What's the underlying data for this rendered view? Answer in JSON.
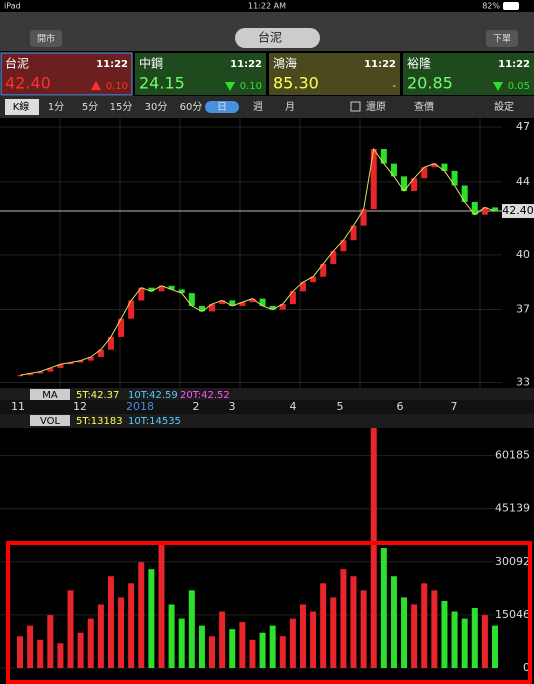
{
  "status_bar": {
    "device": "iPad",
    "time": "11:22 AM",
    "battery": "82%"
  },
  "toolbar": {
    "left_button": "開市",
    "title": "台泥",
    "right_button": "下單"
  },
  "quotes": [
    {
      "name": "台泥",
      "time": "11:22",
      "price": "42.40",
      "change": "0.10"
    },
    {
      "name": "中鋼",
      "time": "11:22",
      "price": "24.15",
      "change": "0.10"
    },
    {
      "name": "鴻海",
      "time": "11:22",
      "price": "85.30",
      "change": "-"
    },
    {
      "name": "裕隆",
      "time": "11:22",
      "price": "20.85",
      "change": "0.05"
    }
  ],
  "tabs": [
    "K線",
    "1分",
    "5分",
    "15分",
    "30分",
    "60分",
    "日",
    "週",
    "月",
    "還原",
    "查價",
    "設定"
  ],
  "price_chart": {
    "ylim": [
      32.7,
      47.5
    ],
    "yticks": [
      33,
      37,
      40,
      44,
      47
    ],
    "last_price": {
      "value": 42.4,
      "label": "42.40"
    },
    "closes": [
      33.4,
      33.5,
      33.6,
      33.8,
      34.0,
      34.1,
      34.2,
      34.4,
      34.8,
      35.5,
      36.5,
      37.5,
      38.2,
      38.0,
      38.3,
      38.1,
      37.9,
      37.2,
      36.9,
      37.3,
      37.5,
      37.2,
      37.4,
      37.6,
      37.2,
      37.0,
      37.3,
      38.0,
      38.5,
      38.8,
      39.5,
      40.2,
      40.8,
      41.6,
      42.5,
      45.8,
      45.0,
      44.3,
      43.5,
      44.2,
      44.8,
      45.0,
      44.6,
      43.8,
      42.9,
      42.2,
      42.6,
      42.4
    ],
    "ma_label": "MA",
    "ma_values": [
      "5T:42.37",
      "10T:42.59",
      "20T:42.52"
    ],
    "x_labels": [
      "11",
      "12",
      "2018",
      "2",
      "3",
      "4",
      "5",
      "6",
      "7"
    ]
  },
  "volume_chart": {
    "label": "VOL",
    "ma_values": [
      "5T:13183",
      "10T:14535"
    ],
    "ylim": [
      0,
      68000
    ],
    "yticks": [
      0,
      15046,
      30092,
      45139,
      60185
    ],
    "values": [
      9000,
      12000,
      8000,
      15000,
      7000,
      22000,
      10000,
      14000,
      18000,
      26000,
      20000,
      24000,
      30000,
      28000,
      36000,
      18000,
      14000,
      22000,
      12000,
      9000,
      16000,
      11000,
      13000,
      8000,
      10000,
      12000,
      9000,
      14000,
      18000,
      16000,
      24000,
      20000,
      28000,
      26000,
      22000,
      68000,
      34000,
      26000,
      20000,
      18000,
      24000,
      22000,
      19000,
      16000,
      14000,
      17000,
      15000,
      12000
    ]
  }
}
